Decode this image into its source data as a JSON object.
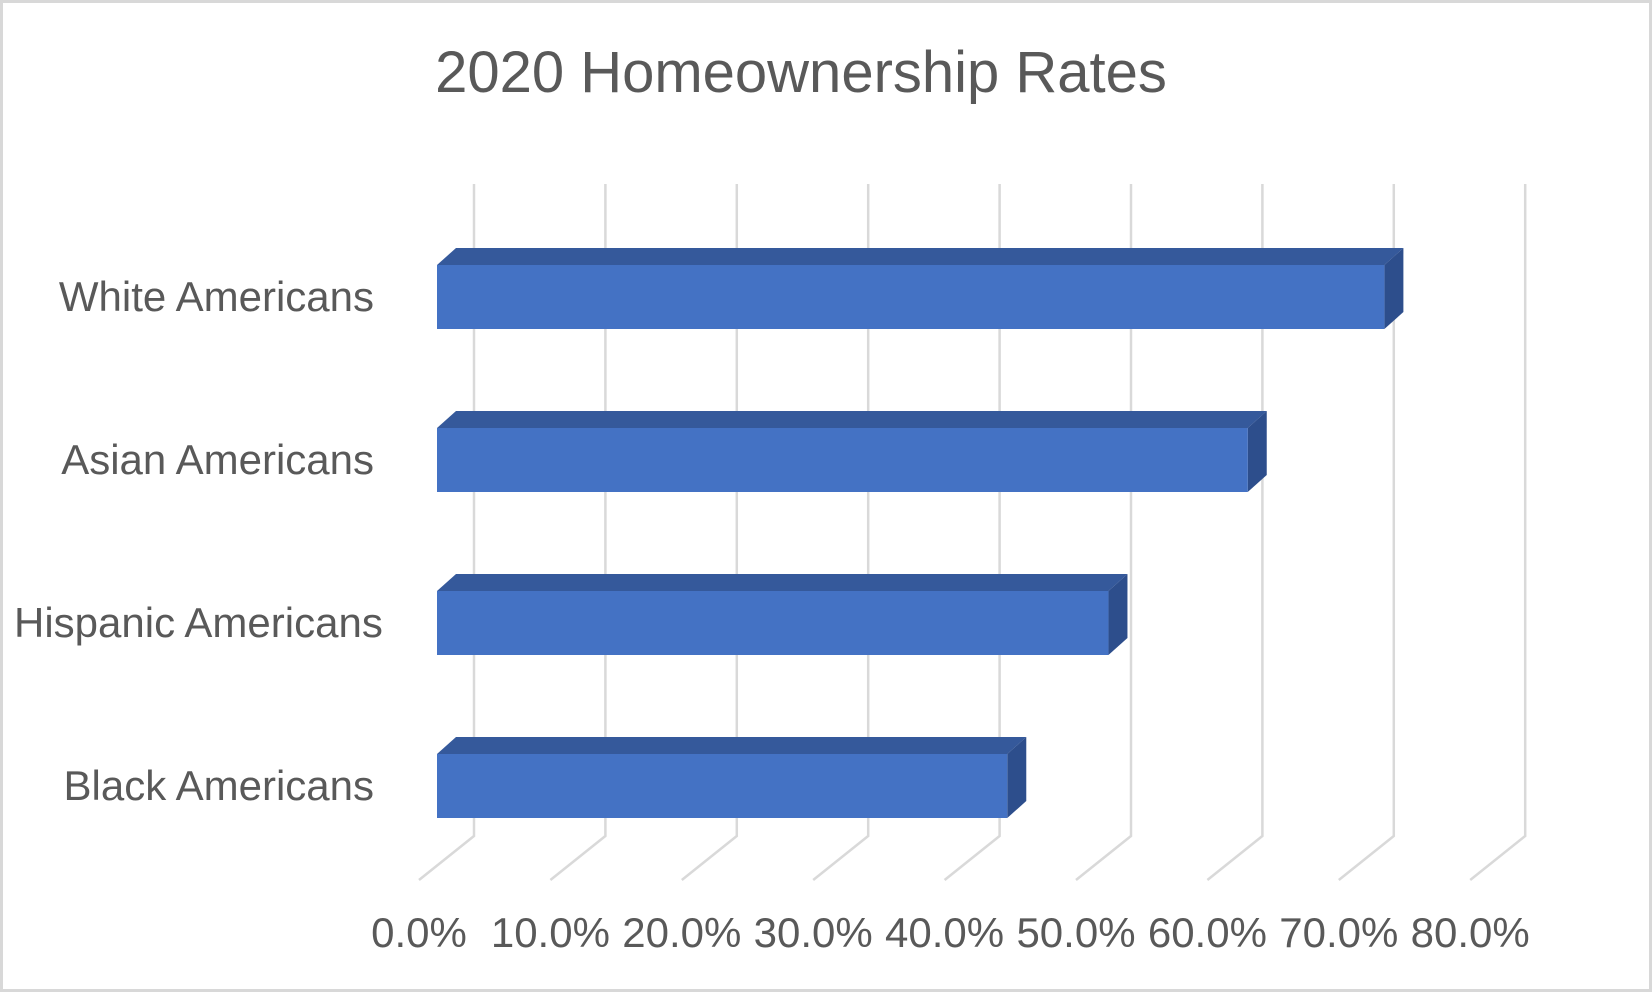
{
  "title": "2020 Homeownership Rates",
  "chart_data": {
    "type": "bar",
    "orientation": "horizontal",
    "style": "3d",
    "title": "2020 Homeownership Rates",
    "categories": [
      "White Americans",
      "Asian Americans",
      "Hispanic Americans",
      "Black Americans"
    ],
    "values": [
      72.1,
      61.7,
      51.1,
      43.4
    ],
    "unit": "%",
    "xlabel": "",
    "ylabel": "",
    "xlim": [
      0,
      80
    ],
    "x_tick_labels": [
      "0.0%",
      "10.0%",
      "20.0%",
      "30.0%",
      "40.0%",
      "50.0%",
      "60.0%",
      "70.0%",
      "80.0%"
    ],
    "grid": true,
    "legend": false,
    "colors": {
      "bar_front": "#4472C4",
      "bar_top": "#35599B",
      "bar_side": "#2D4E8C",
      "gridline": "#D9D9D9",
      "text": "#595959",
      "background": "#FFFFFF",
      "page_border": "#D8D8D8"
    }
  }
}
